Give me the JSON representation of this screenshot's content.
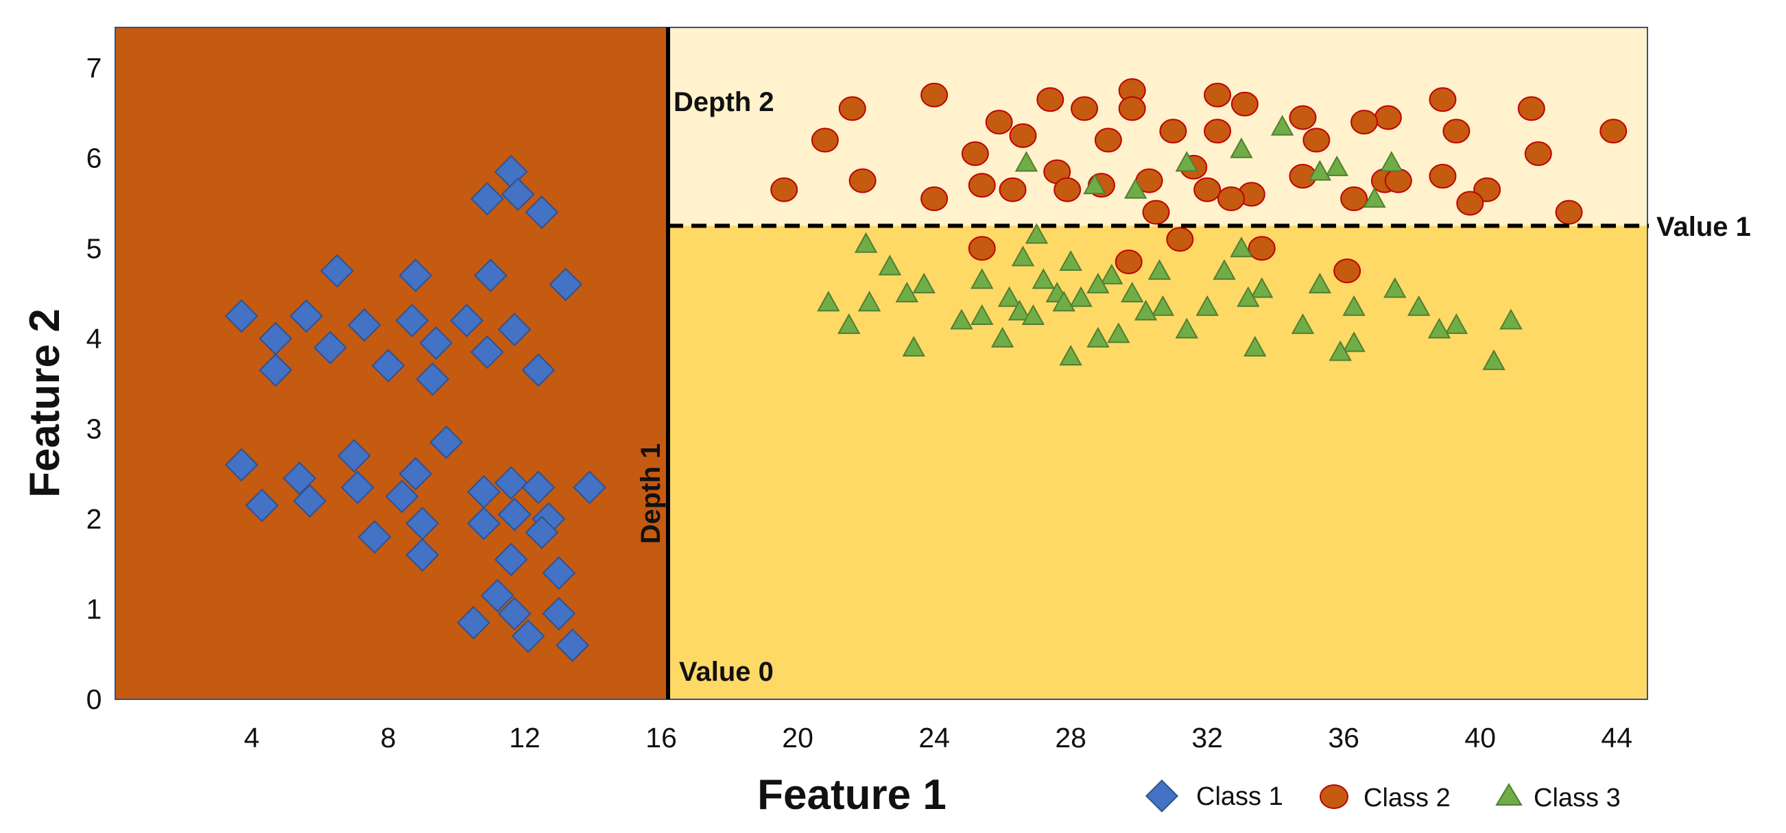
{
  "colors": {
    "region_left": "#C55A11",
    "region_top": "#FFF2CC",
    "region_bottom": "#FFD966",
    "class1": "#4472C4",
    "class1_stroke": "#2F528F",
    "class2": "#C55A11",
    "class2_stroke": "#C00000",
    "class3": "#70AD47",
    "class3_stroke": "#507E32",
    "frame": "#2F528F"
  },
  "chart_data": {
    "type": "scatter",
    "xlabel": "Feature 1",
    "ylabel": "Feature 2",
    "xlim": [
      0,
      44.9
    ],
    "ylim": [
      0,
      7.45
    ],
    "x_ticks": [
      4,
      8,
      12,
      16,
      20,
      24,
      28,
      32,
      36,
      40,
      44
    ],
    "y_ticks": [
      0,
      1,
      2,
      3,
      4,
      5,
      6,
      7
    ],
    "regions": [
      {
        "name": "class-1-region",
        "x_range": [
          0,
          16.2
        ],
        "y_range": [
          0,
          7.45
        ],
        "color_key": "region_left"
      },
      {
        "name": "class-2-region",
        "x_range": [
          16.2,
          44.9
        ],
        "y_range": [
          5.25,
          7.45
        ],
        "color_key": "region_top"
      },
      {
        "name": "class-3-region",
        "x_range": [
          16.2,
          44.9
        ],
        "y_range": [
          0,
          5.25
        ],
        "color_key": "region_bottom"
      }
    ],
    "splits": [
      {
        "name": "depth-1-split",
        "orientation": "vertical",
        "x": 16.2,
        "style": "solid",
        "label": "Depth 1",
        "value_label": "Value 0"
      },
      {
        "name": "depth-2-split",
        "orientation": "horizontal",
        "y": 5.25,
        "x_start": 16.2,
        "style": "dashed",
        "label": "Depth 2",
        "value_label": "Value 1"
      }
    ],
    "series": [
      {
        "name": "Class 1",
        "marker": "diamond",
        "points": [
          [
            11.6,
            5.85
          ],
          [
            10.9,
            5.55
          ],
          [
            11.8,
            5.6
          ],
          [
            12.5,
            5.4
          ],
          [
            6.5,
            4.75
          ],
          [
            8.8,
            4.7
          ],
          [
            11.0,
            4.7
          ],
          [
            13.2,
            4.6
          ],
          [
            3.7,
            4.25
          ],
          [
            5.6,
            4.25
          ],
          [
            4.7,
            4.0
          ],
          [
            6.3,
            3.9
          ],
          [
            7.3,
            4.15
          ],
          [
            8.7,
            4.2
          ],
          [
            9.4,
            3.95
          ],
          [
            10.3,
            4.2
          ],
          [
            11.7,
            4.1
          ],
          [
            10.9,
            3.85
          ],
          [
            4.7,
            3.65
          ],
          [
            8.0,
            3.7
          ],
          [
            9.3,
            3.55
          ],
          [
            12.4,
            3.65
          ],
          [
            9.7,
            2.85
          ],
          [
            3.7,
            2.6
          ],
          [
            7.0,
            2.7
          ],
          [
            5.4,
            2.45
          ],
          [
            8.8,
            2.5
          ],
          [
            4.3,
            2.15
          ],
          [
            5.7,
            2.2
          ],
          [
            7.1,
            2.35
          ],
          [
            8.4,
            2.25
          ],
          [
            9.0,
            1.95
          ],
          [
            10.8,
            2.3
          ],
          [
            11.6,
            2.4
          ],
          [
            12.4,
            2.35
          ],
          [
            13.9,
            2.35
          ],
          [
            10.8,
            1.95
          ],
          [
            11.7,
            2.05
          ],
          [
            12.7,
            2.0
          ],
          [
            12.5,
            1.85
          ],
          [
            7.6,
            1.8
          ],
          [
            9.0,
            1.6
          ],
          [
            11.6,
            1.55
          ],
          [
            13.0,
            1.4
          ],
          [
            11.2,
            1.15
          ],
          [
            11.7,
            0.95
          ],
          [
            13.0,
            0.95
          ],
          [
            10.5,
            0.85
          ],
          [
            12.1,
            0.7
          ],
          [
            13.4,
            0.6
          ]
        ]
      },
      {
        "name": "Class 2",
        "marker": "circle",
        "points": [
          [
            24.0,
            6.7
          ],
          [
            29.8,
            6.75
          ],
          [
            32.3,
            6.7
          ],
          [
            21.6,
            6.55
          ],
          [
            27.4,
            6.65
          ],
          [
            28.4,
            6.55
          ],
          [
            29.8,
            6.55
          ],
          [
            33.1,
            6.6
          ],
          [
            38.9,
            6.65
          ],
          [
            41.5,
            6.55
          ],
          [
            25.9,
            6.4
          ],
          [
            34.8,
            6.45
          ],
          [
            37.3,
            6.45
          ],
          [
            26.6,
            6.25
          ],
          [
            31.0,
            6.3
          ],
          [
            32.3,
            6.3
          ],
          [
            36.6,
            6.4
          ],
          [
            39.3,
            6.3
          ],
          [
            43.9,
            6.3
          ],
          [
            20.8,
            6.2
          ],
          [
            29.1,
            6.2
          ],
          [
            35.2,
            6.2
          ],
          [
            25.2,
            6.05
          ],
          [
            41.7,
            6.05
          ],
          [
            31.6,
            5.9
          ],
          [
            27.6,
            5.85
          ],
          [
            34.8,
            5.8
          ],
          [
            38.9,
            5.8
          ],
          [
            21.9,
            5.75
          ],
          [
            25.4,
            5.7
          ],
          [
            28.9,
            5.7
          ],
          [
            30.3,
            5.75
          ],
          [
            37.2,
            5.75
          ],
          [
            37.6,
            5.75
          ],
          [
            19.6,
            5.65
          ],
          [
            26.3,
            5.65
          ],
          [
            27.9,
            5.65
          ],
          [
            32.0,
            5.65
          ],
          [
            33.3,
            5.6
          ],
          [
            40.2,
            5.65
          ],
          [
            24.0,
            5.55
          ],
          [
            32.7,
            5.55
          ],
          [
            36.3,
            5.55
          ],
          [
            39.7,
            5.5
          ],
          [
            30.5,
            5.4
          ],
          [
            42.6,
            5.4
          ],
          [
            31.2,
            5.1
          ],
          [
            25.4,
            5.0
          ],
          [
            33.6,
            5.0
          ],
          [
            29.7,
            4.85
          ],
          [
            36.1,
            4.75
          ]
        ]
      },
      {
        "name": "Class 3",
        "marker": "triangle",
        "points": [
          [
            34.2,
            6.35
          ],
          [
            33.0,
            6.1
          ],
          [
            26.7,
            5.95
          ],
          [
            37.4,
            5.95
          ],
          [
            31.4,
            5.95
          ],
          [
            35.8,
            5.9
          ],
          [
            35.3,
            5.85
          ],
          [
            28.7,
            5.7
          ],
          [
            29.9,
            5.65
          ],
          [
            36.9,
            5.55
          ],
          [
            27.0,
            5.15
          ],
          [
            22.0,
            5.05
          ],
          [
            33.0,
            5.0
          ],
          [
            26.6,
            4.9
          ],
          [
            28.0,
            4.85
          ],
          [
            22.7,
            4.8
          ],
          [
            30.6,
            4.75
          ],
          [
            32.5,
            4.75
          ],
          [
            29.2,
            4.7
          ],
          [
            25.4,
            4.65
          ],
          [
            27.2,
            4.65
          ],
          [
            28.8,
            4.6
          ],
          [
            35.3,
            4.6
          ],
          [
            23.7,
            4.6
          ],
          [
            33.6,
            4.55
          ],
          [
            37.5,
            4.55
          ],
          [
            23.2,
            4.5
          ],
          [
            27.6,
            4.5
          ],
          [
            29.8,
            4.5
          ],
          [
            26.2,
            4.45
          ],
          [
            28.3,
            4.45
          ],
          [
            33.2,
            4.45
          ],
          [
            20.9,
            4.4
          ],
          [
            22.1,
            4.4
          ],
          [
            27.8,
            4.4
          ],
          [
            30.7,
            4.35
          ],
          [
            32.0,
            4.35
          ],
          [
            36.3,
            4.35
          ],
          [
            26.5,
            4.3
          ],
          [
            30.2,
            4.3
          ],
          [
            38.2,
            4.35
          ],
          [
            25.4,
            4.25
          ],
          [
            26.9,
            4.25
          ],
          [
            24.8,
            4.2
          ],
          [
            40.9,
            4.2
          ],
          [
            21.5,
            4.15
          ],
          [
            31.4,
            4.1
          ],
          [
            34.8,
            4.15
          ],
          [
            39.3,
            4.15
          ],
          [
            38.8,
            4.1
          ],
          [
            26.0,
            4.0
          ],
          [
            29.4,
            4.05
          ],
          [
            28.8,
            4.0
          ],
          [
            36.3,
            3.95
          ],
          [
            23.4,
            3.9
          ],
          [
            33.4,
            3.9
          ],
          [
            35.9,
            3.85
          ],
          [
            28.0,
            3.8
          ],
          [
            40.4,
            3.75
          ]
        ]
      }
    ],
    "legend": {
      "position": "bottom-right",
      "items": [
        {
          "label": "Class 1",
          "marker": "diamond"
        },
        {
          "label": "Class 2",
          "marker": "circle"
        },
        {
          "label": "Class 3",
          "marker": "triangle"
        }
      ]
    },
    "annotations": [
      "Depth 1",
      "Depth 2",
      "Value 0",
      "Value 1"
    ]
  }
}
